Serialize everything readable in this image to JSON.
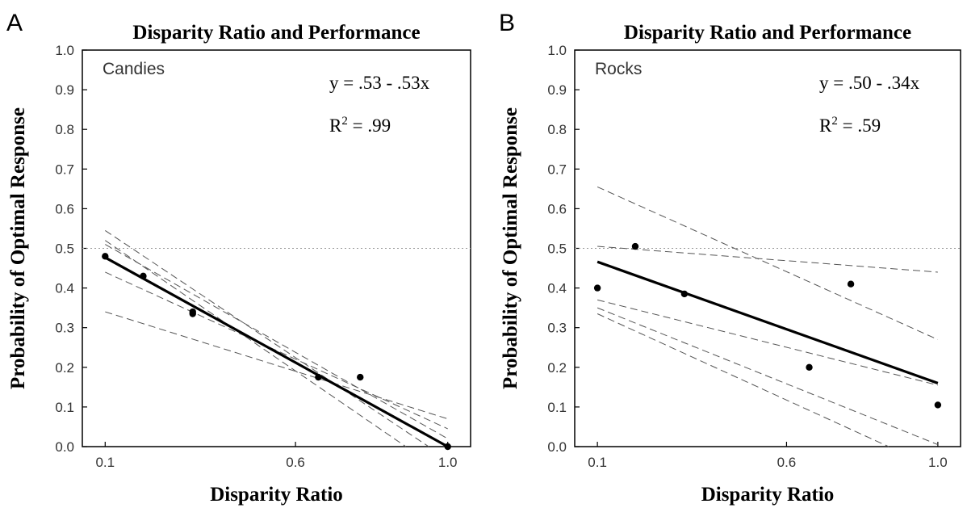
{
  "chart_data": [
    {
      "type": "scatter",
      "panel_letter": "A",
      "title": "Disparity Ratio and Performance",
      "xlabel": "Disparity Ratio",
      "ylabel": "Probability of Optimal Response",
      "inset_label": "Candies",
      "equation": "y = .53 - .53x",
      "r_squared_prefix": "R",
      "r_squared_sup": "2",
      "r_squared_value": " = .99",
      "xlim": [
        0.04,
        1.06
      ],
      "ylim": [
        0,
        1.0
      ],
      "xticks": [
        {
          "v": 0.1,
          "label": "0.1"
        },
        {
          "v": 0.6,
          "label": "0.6"
        },
        {
          "v": 1.0,
          "label": "1.0"
        }
      ],
      "yticks": [
        {
          "v": 0.0,
          "label": "0.0"
        },
        {
          "v": 0.1,
          "label": "0.1"
        },
        {
          "v": 0.2,
          "label": "0.2"
        },
        {
          "v": 0.3,
          "label": "0.3"
        },
        {
          "v": 0.4,
          "label": "0.4"
        },
        {
          "v": 0.5,
          "label": "0.5"
        },
        {
          "v": 0.6,
          "label": "0.6"
        },
        {
          "v": 0.7,
          "label": "0.7"
        },
        {
          "v": 0.8,
          "label": "0.8"
        },
        {
          "v": 0.9,
          "label": "0.9"
        },
        {
          "v": 1.0,
          "label": "1.0"
        }
      ],
      "reference_line_y": 0.5,
      "points": [
        {
          "x": 0.1,
          "y": 0.48
        },
        {
          "x": 0.2,
          "y": 0.43
        },
        {
          "x": 0.33,
          "y": 0.335
        },
        {
          "x": 0.33,
          "y": 0.34
        },
        {
          "x": 0.66,
          "y": 0.175
        },
        {
          "x": 0.77,
          "y": 0.175
        },
        {
          "x": 1.0,
          "y": 0.0
        }
      ],
      "fit_line": {
        "intercept": 0.53,
        "slope": -0.53,
        "x_range": [
          0.1,
          1.0
        ]
      },
      "individual_lines": [
        {
          "x0": 0.1,
          "y0": 0.545,
          "x1": 0.95,
          "y1": 0.0
        },
        {
          "x0": 0.1,
          "y0": 0.52,
          "x1": 0.89,
          "y1": 0.0
        },
        {
          "x0": 0.1,
          "y0": 0.44,
          "x1": 1.0,
          "y1": 0.045
        },
        {
          "x0": 0.1,
          "y0": 0.34,
          "x1": 1.0,
          "y1": 0.07
        },
        {
          "x0": 0.1,
          "y0": 0.51,
          "x1": 1.0,
          "y1": 0.02
        }
      ]
    },
    {
      "type": "scatter",
      "panel_letter": "B",
      "title": "Disparity Ratio and Performance",
      "xlabel": "Disparity Ratio",
      "ylabel": "Probability of Optimal Response",
      "inset_label": "Rocks",
      "equation": "y = .50 - .34x",
      "r_squared_prefix": "R",
      "r_squared_sup": "2",
      "r_squared_value": " = .59",
      "xlim": [
        0.04,
        1.06
      ],
      "ylim": [
        0,
        1.0
      ],
      "xticks": [
        {
          "v": 0.1,
          "label": "0.1"
        },
        {
          "v": 0.6,
          "label": "0.6"
        },
        {
          "v": 1.0,
          "label": "1.0"
        }
      ],
      "yticks": [
        {
          "v": 0.0,
          "label": "0.0"
        },
        {
          "v": 0.1,
          "label": "0.1"
        },
        {
          "v": 0.2,
          "label": "0.2"
        },
        {
          "v": 0.3,
          "label": "0.3"
        },
        {
          "v": 0.4,
          "label": "0.4"
        },
        {
          "v": 0.5,
          "label": "0.5"
        },
        {
          "v": 0.6,
          "label": "0.6"
        },
        {
          "v": 0.7,
          "label": "0.7"
        },
        {
          "v": 0.8,
          "label": "0.8"
        },
        {
          "v": 0.9,
          "label": "0.9"
        },
        {
          "v": 1.0,
          "label": "1.0"
        }
      ],
      "reference_line_y": 0.5,
      "points": [
        {
          "x": 0.1,
          "y": 0.4
        },
        {
          "x": 0.2,
          "y": 0.505
        },
        {
          "x": 0.33,
          "y": 0.385
        },
        {
          "x": 0.66,
          "y": 0.2
        },
        {
          "x": 0.77,
          "y": 0.41
        },
        {
          "x": 1.0,
          "y": 0.105
        }
      ],
      "fit_line": {
        "intercept": 0.5,
        "slope": -0.34,
        "x_range": [
          0.1,
          1.0
        ]
      },
      "individual_lines": [
        {
          "x0": 0.1,
          "y0": 0.655,
          "x1": 1.0,
          "y1": 0.27
        },
        {
          "x0": 0.1,
          "y0": 0.505,
          "x1": 1.0,
          "y1": 0.44
        },
        {
          "x0": 0.1,
          "y0": 0.37,
          "x1": 1.0,
          "y1": 0.155
        },
        {
          "x0": 0.1,
          "y0": 0.35,
          "x1": 1.0,
          "y1": 0.005
        },
        {
          "x0": 0.1,
          "y0": 0.335,
          "x1": 0.87,
          "y1": 0.0
        }
      ]
    }
  ]
}
